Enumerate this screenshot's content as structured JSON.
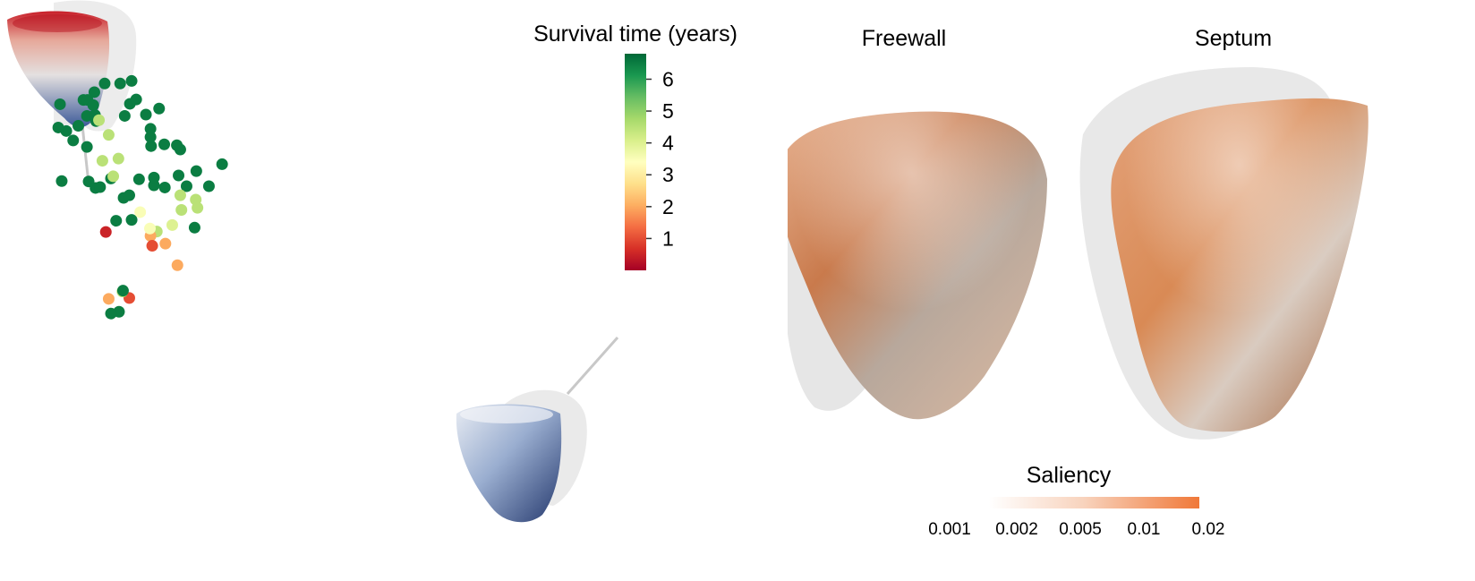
{
  "colorbar": {
    "title": "Survival time (years)",
    "min": 0,
    "max": 6.8,
    "ticks": [
      1,
      2,
      3,
      4,
      5,
      6
    ],
    "tick_labels": [
      "1",
      "2",
      "3",
      "4",
      "5",
      "6"
    ],
    "colors": [
      "#a50026",
      "#d73027",
      "#f46d43",
      "#fdae61",
      "#fee08b",
      "#ffffbf",
      "#d9ef8b",
      "#a6d96a",
      "#66bd63",
      "#1a9850",
      "#006837"
    ]
  },
  "views": {
    "freewall_title": "Freewall",
    "septum_title": "Septum"
  },
  "saliency": {
    "title": "Saliency",
    "ticks": [
      "0.001",
      "0.002",
      "0.005",
      "0.01",
      "0.02"
    ],
    "color_low": "#ffffff",
    "color_high": "#f07838"
  },
  "chart_data": {
    "type": "scatter",
    "xlabel": "",
    "ylabel": "",
    "xlim": [
      0,
      100
    ],
    "ylim": [
      0,
      100
    ],
    "color_variable": "Survival time (years)",
    "points": [
      {
        "x": 13.6,
        "y": 99.5,
        "v": 6.5
      },
      {
        "x": 6.1,
        "y": 76.2,
        "v": 6.5
      },
      {
        "x": 10.0,
        "y": 76.9,
        "v": 6.5
      },
      {
        "x": 17.5,
        "y": 75.3,
        "v": 6.5
      },
      {
        "x": 19.4,
        "y": 74.8,
        "v": 6.5
      },
      {
        "x": 23.2,
        "y": 75.1,
        "v": 6.5
      },
      {
        "x": 27.1,
        "y": 75.1,
        "v": 6.5
      },
      {
        "x": 22.1,
        "y": 73.0,
        "v": 4.5
      },
      {
        "x": 24.6,
        "y": 65.5,
        "v": 6.5
      },
      {
        "x": 10.9,
        "y": 67.1,
        "v": 6.5
      },
      {
        "x": 7.3,
        "y": 74.7,
        "v": 6.5
      },
      {
        "x": 8.1,
        "y": 74.9,
        "v": 6.5
      },
      {
        "x": 12.2,
        "y": 72.4,
        "v": 6.5
      },
      {
        "x": 14.9,
        "y": 76.7,
        "v": 6.5
      },
      {
        "x": 17.5,
        "y": 77.1,
        "v": 6.5
      },
      {
        "x": 21.8,
        "y": 77.6,
        "v": 6.5
      },
      {
        "x": 24.9,
        "y": 78.6,
        "v": 6.5
      },
      {
        "x": 29.4,
        "y": 80.2,
        "v": 6.5
      },
      {
        "x": 22.1,
        "y": 83.6,
        "v": 6.5
      },
      {
        "x": 17.0,
        "y": 84.4,
        "v": 6.5
      },
      {
        "x": 19.3,
        "y": 84.8,
        "v": 6.5
      },
      {
        "x": 21.5,
        "y": 84.6,
        "v": 6.5
      },
      {
        "x": 16.9,
        "y": 86.5,
        "v": 6.5
      },
      {
        "x": 5.8,
        "y": 84.2,
        "v": 6.5
      },
      {
        "x": 3.4,
        "y": 85.7,
        "v": 6.5
      },
      {
        "x": 1.4,
        "y": 76.3,
        "v": 6.5
      },
      {
        "x": 2.2,
        "y": 87.9,
        "v": 6.5
      },
      {
        "x": 4.3,
        "y": 89.1,
        "v": 6.5
      },
      {
        "x": 5.8,
        "y": 91.4,
        "v": 6.5
      },
      {
        "x": 7.4,
        "y": 90.2,
        "v": 6.5
      },
      {
        "x": 5.2,
        "y": 95.1,
        "v": 6.5
      },
      {
        "x": 5.9,
        "y": 95.1,
        "v": 6.5
      },
      {
        "x": 7.1,
        "y": 96.9,
        "v": 6.5
      },
      {
        "x": 6.9,
        "y": 93.9,
        "v": 6.5
      },
      {
        "x": 10.4,
        "y": 77.4,
        "v": 4.5
      },
      {
        "x": 13.6,
        "y": 67.3,
        "v": 6.5
      },
      {
        "x": 16.9,
        "y": 88.4,
        "v": 6.5
      },
      {
        "x": 13.3,
        "y": 94.2,
        "v": 6.5
      },
      {
        "x": 14.4,
        "y": 95.2,
        "v": 6.5
      },
      {
        "x": 16.1,
        "y": 91.7,
        "v": 6.5
      },
      {
        "x": 18.4,
        "y": 93.1,
        "v": 6.5
      },
      {
        "x": 12.4,
        "y": 91.4,
        "v": 6.5
      },
      {
        "x": 11.6,
        "y": 98.9,
        "v": 6.5
      },
      {
        "x": 7.2,
        "y": 91.6,
        "v": 6.5
      },
      {
        "x": 8.9,
        "y": 98.9,
        "v": 6.5
      },
      {
        "x": 1.1,
        "y": 94.1,
        "v": 6.5
      },
      {
        "x": 0.8,
        "y": 88.7,
        "v": 6.5
      },
      {
        "x": 7.9,
        "y": 90.4,
        "v": 4.5
      },
      {
        "x": 9.6,
        "y": 87.0,
        "v": 4.5
      },
      {
        "x": 11.3,
        "y": 81.5,
        "v": 4.5
      },
      {
        "x": 8.5,
        "y": 81.0,
        "v": 4.5
      },
      {
        "x": 13.2,
        "y": 73.0,
        "v": 6.5
      },
      {
        "x": 22.3,
        "y": 69.6,
        "v": 4.5
      },
      {
        "x": 24.8,
        "y": 72.0,
        "v": 4.5
      },
      {
        "x": 25.1,
        "y": 70.1,
        "v": 4.5
      },
      {
        "x": 20.7,
        "y": 66.1,
        "v": 4.0
      },
      {
        "x": 18.0,
        "y": 64.6,
        "v": 4.5
      },
      {
        "x": 9.1,
        "y": 64.5,
        "v": 0.5
      },
      {
        "x": 15.1,
        "y": 69.1,
        "v": 3.5
      },
      {
        "x": 16.9,
        "y": 63.6,
        "v": 2.0
      },
      {
        "x": 16.8,
        "y": 65.3,
        "v": 3.5
      },
      {
        "x": 17.2,
        "y": 61.3,
        "v": 1.0
      },
      {
        "x": 19.5,
        "y": 61.8,
        "v": 2.0
      },
      {
        "x": 21.6,
        "y": 56.8,
        "v": 2.0
      },
      {
        "x": 13.2,
        "y": 49.2,
        "v": 1.0
      },
      {
        "x": 12.0,
        "y": 50.7,
        "v": 4.5
      },
      {
        "x": 12.1,
        "y": 50.9,
        "v": 6.5
      },
      {
        "x": 11.4,
        "y": 46.0,
        "v": 6.5
      },
      {
        "x": 10.0,
        "y": 45.6,
        "v": 6.5
      },
      {
        "x": 9.6,
        "y": 49.0,
        "v": 2.0
      }
    ]
  }
}
